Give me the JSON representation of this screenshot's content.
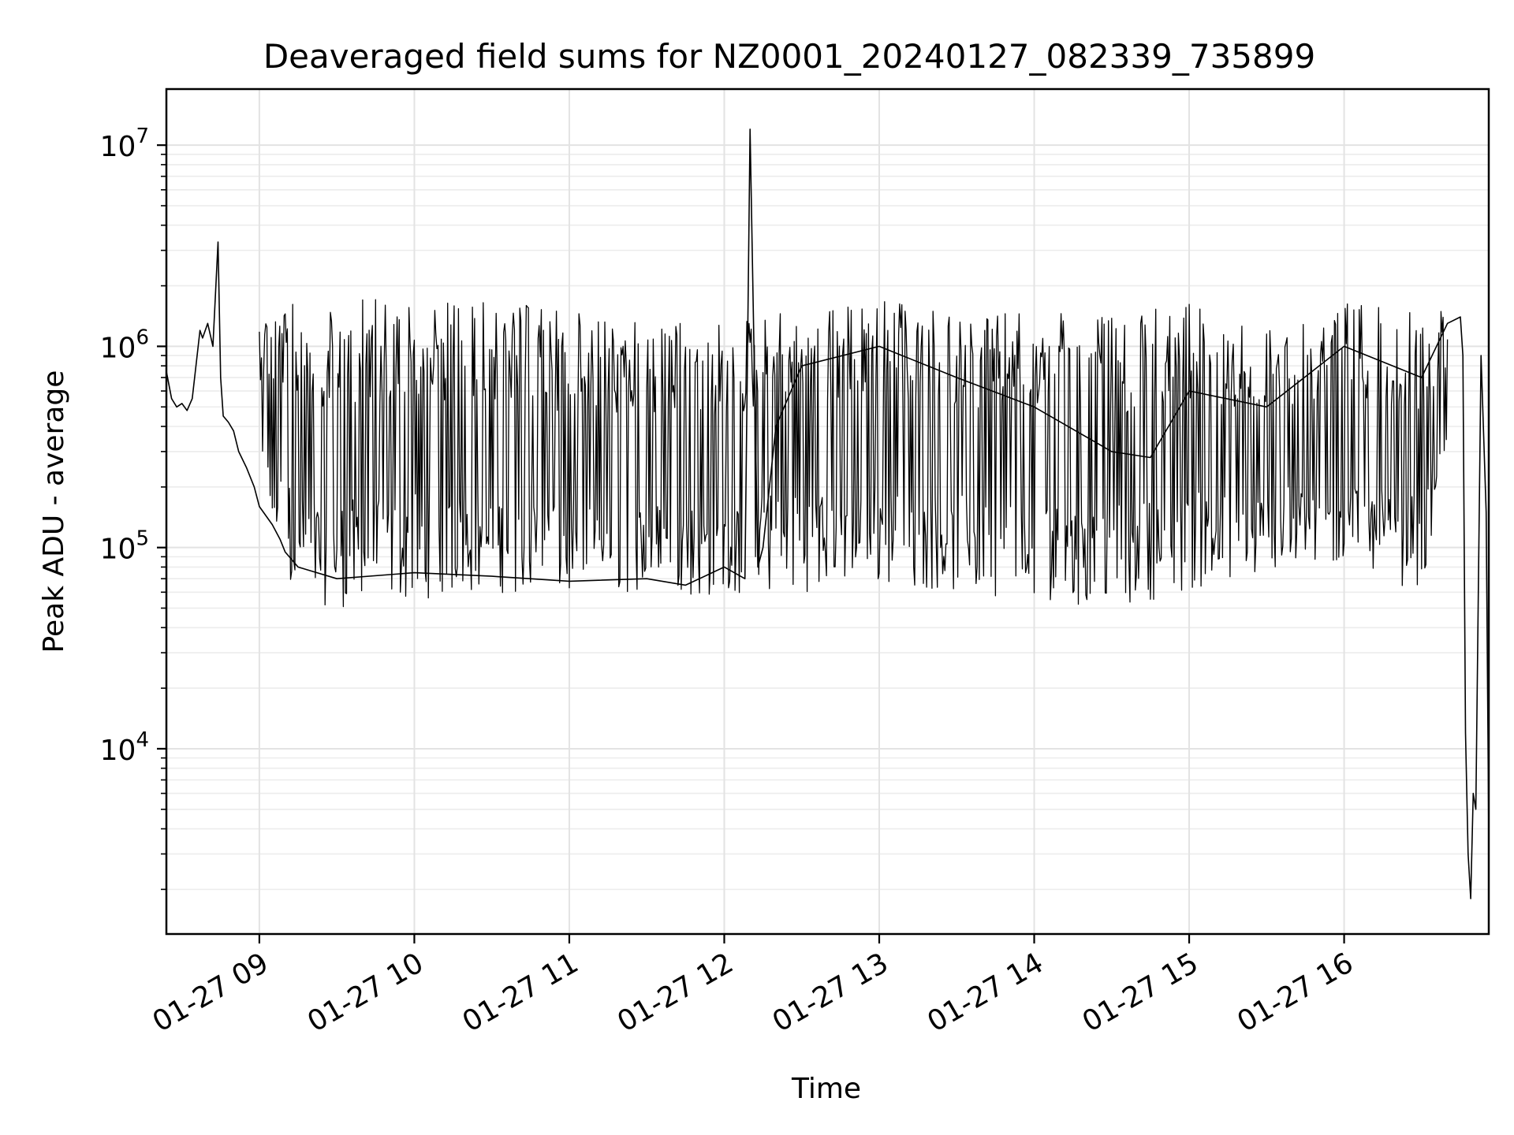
{
  "chart_data": {
    "type": "line",
    "title": "Deaveraged field sums for NZ0001_20240127_082339_735899",
    "xlabel": "Time",
    "ylabel": "Peak ADU - average",
    "x_axis_type": "time",
    "y_scale": "log",
    "xlim": [
      "2024-01-27 08:24",
      "2024-01-27 16:56"
    ],
    "ylim": [
      1200,
      19000000
    ],
    "x_ticks": [
      {
        "value": "2024-01-27 09:00",
        "label": "01-27 09"
      },
      {
        "value": "2024-01-27 10:00",
        "label": "01-27 10"
      },
      {
        "value": "2024-01-27 11:00",
        "label": "01-27 11"
      },
      {
        "value": "2024-01-27 12:00",
        "label": "01-27 12"
      },
      {
        "value": "2024-01-27 13:00",
        "label": "01-27 13"
      },
      {
        "value": "2024-01-27 14:00",
        "label": "01-27 14"
      },
      {
        "value": "2024-01-27 15:00",
        "label": "01-27 15"
      },
      {
        "value": "2024-01-27 16:00",
        "label": "01-27 16"
      }
    ],
    "y_ticks": [
      {
        "value": 10000,
        "base": "10",
        "exp": "4"
      },
      {
        "value": 100000,
        "base": "10",
        "exp": "5"
      },
      {
        "value": 1000000,
        "base": "10",
        "exp": "6"
      },
      {
        "value": 10000000,
        "base": "10",
        "exp": "7"
      }
    ],
    "grid": true,
    "line_color": "#000000",
    "series": [
      {
        "x": [
          "2024-01-27 08:24",
          "2024-01-27 08:26",
          "2024-01-27 08:28",
          "2024-01-27 08:30",
          "2024-01-27 08:32",
          "2024-01-27 08:34",
          "2024-01-27 08:37",
          "2024-01-27 08:38",
          "2024-01-27 08:40",
          "2024-01-27 08:42",
          "2024-01-27 08:44",
          "2024-01-27 08:45",
          "2024-01-27 08:46",
          "2024-01-27 08:48",
          "2024-01-27 08:50",
          "2024-01-27 08:52",
          "2024-01-27 08:55",
          "2024-01-27 08:58",
          "2024-01-27 09:00",
          "2024-01-27 09:05",
          "2024-01-27 09:08",
          "2024-01-27 09:10",
          "2024-01-27 09:15",
          "2024-01-27 09:30",
          "2024-01-27 10:00",
          "2024-01-27 10:30",
          "2024-01-27 11:00",
          "2024-01-27 11:30",
          "2024-01-27 11:45",
          "2024-01-27 12:00",
          "2024-01-27 12:08",
          "2024-01-27 12:10",
          "2024-01-27 12:13",
          "2024-01-27 12:15",
          "2024-01-27 12:20",
          "2024-01-27 12:30",
          "2024-01-27 13:00",
          "2024-01-27 13:30",
          "2024-01-27 14:00",
          "2024-01-27 14:30",
          "2024-01-27 14:45",
          "2024-01-27 15:00",
          "2024-01-27 15:30",
          "2024-01-27 16:00",
          "2024-01-27 16:30",
          "2024-01-27 16:40",
          "2024-01-27 16:45",
          "2024-01-27 16:46",
          "2024-01-27 16:47",
          "2024-01-27 16:48",
          "2024-01-27 16:49",
          "2024-01-27 16:50",
          "2024-01-27 16:51",
          "2024-01-27 16:53",
          "2024-01-27 16:55",
          "2024-01-27 16:56"
        ],
        "y": [
          750000,
          550000,
          500000,
          520000,
          480000,
          550000,
          1200000,
          1100000,
          1300000,
          1000000,
          3300000,
          700000,
          450000,
          420000,
          380000,
          300000,
          250000,
          200000,
          160000,
          130000,
          110000,
          95000,
          80000,
          70000,
          75000,
          72000,
          68000,
          70000,
          65000,
          80000,
          70000,
          12000000,
          80000,
          100000,
          400000,
          800000,
          1000000,
          700000,
          500000,
          300000,
          280000,
          600000,
          500000,
          1000000,
          700000,
          1300000,
          1400000,
          900000,
          12000,
          3000,
          1800,
          6000,
          5000,
          900000,
          150000,
          3700
        ]
      }
    ],
    "envelope": {
      "x": [
        "2024-01-27 09:00",
        "2024-01-27 09:15",
        "2024-01-27 09:30",
        "2024-01-27 10:00",
        "2024-01-27 10:30",
        "2024-01-27 11:00",
        "2024-01-27 11:30",
        "2024-01-27 12:00",
        "2024-01-27 12:15",
        "2024-01-27 12:30",
        "2024-01-27 13:00",
        "2024-01-27 13:30",
        "2024-01-27 14:00",
        "2024-01-27 14:30",
        "2024-01-27 15:00",
        "2024-01-27 15:30",
        "2024-01-27 16:00",
        "2024-01-27 16:30",
        "2024-01-27 16:40"
      ],
      "low": [
        160000,
        55000,
        50000,
        55000,
        60000,
        55000,
        60000,
        55000,
        60000,
        60000,
        65000,
        60000,
        55000,
        50000,
        60000,
        70000,
        80000,
        60000,
        200000
      ],
      "high": [
        1500000,
        1650000,
        1750000,
        1800000,
        1700000,
        1500000,
        1300000,
        1300000,
        1500000,
        1600000,
        1700000,
        1450000,
        1500000,
        1400000,
        1650000,
        1200000,
        1700000,
        1450000,
        1600000
      ]
    }
  }
}
